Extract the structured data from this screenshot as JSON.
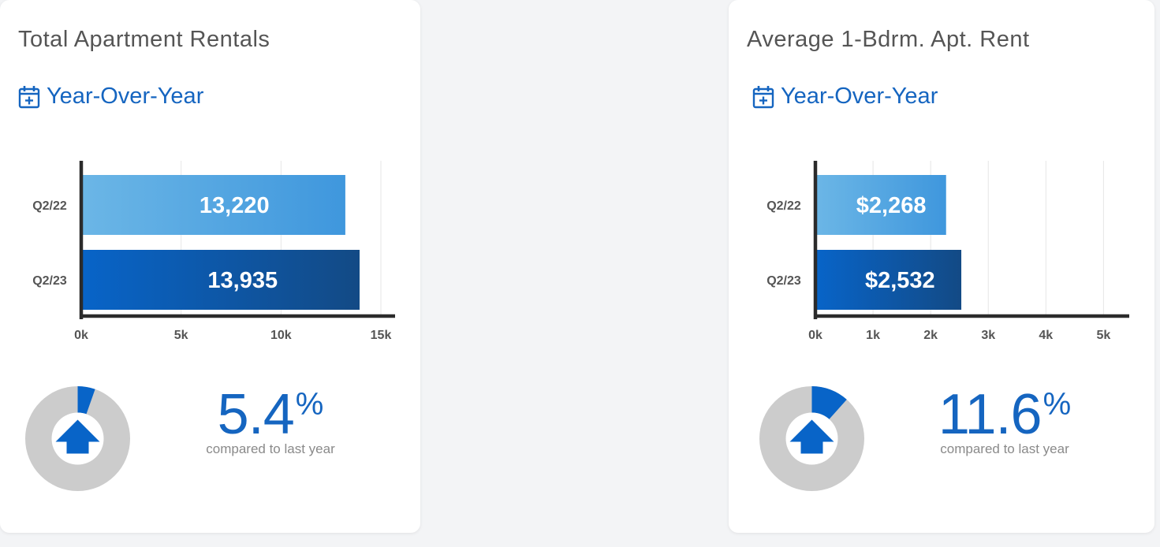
{
  "cards": [
    {
      "title": "Total Apartment Rentals",
      "period_label": "Year-Over-Year",
      "period_icon": "calendar-plus-icon",
      "change": {
        "value": "5.4",
        "unit": "%",
        "caption": "compared to last year",
        "fraction": 0.054,
        "direction_icon": "arrow-up-icon"
      }
    },
    {
      "title": "Average 1-Bdrm. Apt. Rent",
      "period_label": "Year-Over-Year",
      "period_icon": "calendar-plus-icon",
      "change": {
        "value": "11.6",
        "unit": "%",
        "caption": "compared to last year",
        "fraction": 0.116,
        "direction_icon": "arrow-up-icon"
      }
    }
  ],
  "colors": {
    "accent": "#1565c0",
    "bar_prev_start": "#6bb6e6",
    "bar_prev_end": "#3f97dd",
    "bar_curr_start": "#0864c8",
    "bar_curr_end": "#134a85",
    "donut_track": "#cccccc",
    "donut_fill": "#0864c8"
  },
  "chart_data": [
    {
      "type": "bar",
      "orientation": "horizontal",
      "categories": [
        "Q2/22",
        "Q2/23"
      ],
      "values": [
        13220,
        13935
      ],
      "value_labels": [
        "13,220",
        "13,935"
      ],
      "xlim": [
        0,
        15000
      ],
      "xticks": [
        0,
        5000,
        10000,
        15000
      ],
      "xtick_labels": [
        "0k",
        "5k",
        "10k",
        "15k"
      ],
      "grid": true
    },
    {
      "type": "bar",
      "orientation": "horizontal",
      "categories": [
        "Q2/22",
        "Q2/23"
      ],
      "values": [
        2268,
        2532
      ],
      "value_labels": [
        "$2,268",
        "$2,532"
      ],
      "xlim": [
        0,
        5200
      ],
      "xticks": [
        0,
        1000,
        2000,
        3000,
        4000,
        5000
      ],
      "xtick_labels": [
        "0k",
        "1k",
        "2k",
        "3k",
        "4k",
        "5k"
      ],
      "grid": true
    }
  ]
}
